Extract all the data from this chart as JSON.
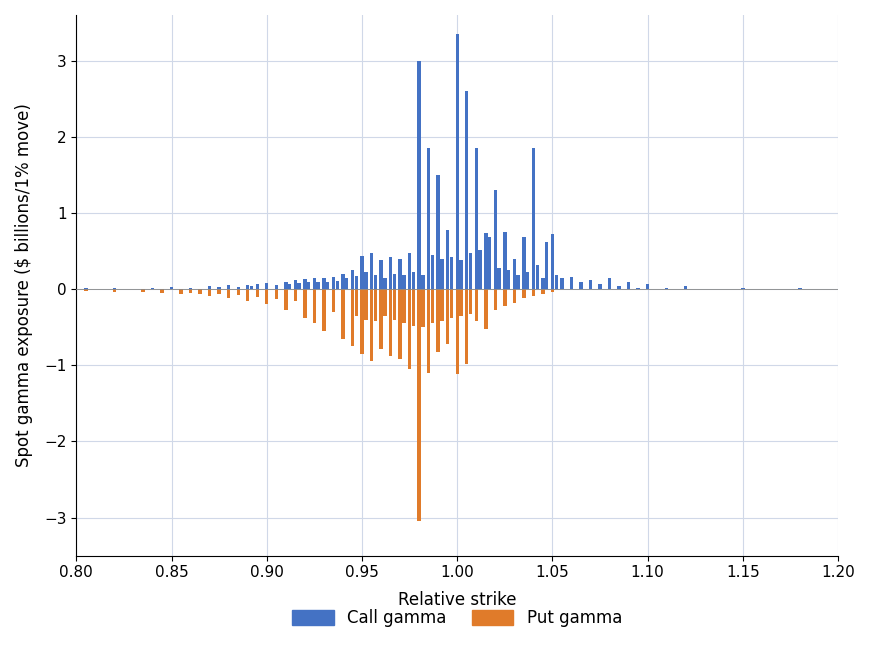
{
  "xlabel": "Relative strike",
  "ylabel": "Spot gamma exposure ($ billions/1% move)",
  "xlim": [
    0.8,
    1.2
  ],
  "ylim": [
    -3.5,
    3.6
  ],
  "yticks": [
    -3,
    -2,
    -1,
    0,
    1,
    2,
    3
  ],
  "xticks": [
    0.8,
    0.85,
    0.9,
    0.95,
    1.0,
    1.05,
    1.1,
    1.15,
    1.2
  ],
  "call_color": "#4472c4",
  "put_color": "#e07b2a",
  "background_color": "#ffffff",
  "grid_color": "#d0d8e8",
  "legend_call": "Call gamma",
  "legend_put": "Put gamma",
  "bar_width": 0.0018,
  "call_strikes": [
    0.805,
    0.82,
    0.84,
    0.85,
    0.86,
    0.87,
    0.875,
    0.88,
    0.885,
    0.89,
    0.892,
    0.895,
    0.9,
    0.905,
    0.91,
    0.912,
    0.915,
    0.917,
    0.92,
    0.922,
    0.925,
    0.927,
    0.93,
    0.932,
    0.935,
    0.937,
    0.94,
    0.942,
    0.945,
    0.947,
    0.95,
    0.952,
    0.955,
    0.957,
    0.96,
    0.962,
    0.965,
    0.967,
    0.97,
    0.972,
    0.975,
    0.977,
    0.98,
    0.982,
    0.985,
    0.987,
    0.99,
    0.992,
    0.995,
    0.997,
    1.0,
    1.002,
    1.005,
    1.007,
    1.01,
    1.012,
    1.015,
    1.017,
    1.02,
    1.022,
    1.025,
    1.027,
    1.03,
    1.032,
    1.035,
    1.037,
    1.04,
    1.042,
    1.045,
    1.047,
    1.05,
    1.052,
    1.055,
    1.06,
    1.065,
    1.07,
    1.075,
    1.08,
    1.085,
    1.09,
    1.095,
    1.1,
    1.11,
    1.12,
    1.15,
    1.18
  ],
  "call_values": [
    0.02,
    0.01,
    0.02,
    0.03,
    0.02,
    0.04,
    0.03,
    0.05,
    0.03,
    0.06,
    0.04,
    0.07,
    0.08,
    0.06,
    0.1,
    0.07,
    0.12,
    0.08,
    0.13,
    0.09,
    0.14,
    0.1,
    0.15,
    0.1,
    0.16,
    0.11,
    0.2,
    0.14,
    0.25,
    0.17,
    0.44,
    0.22,
    0.47,
    0.18,
    0.38,
    0.15,
    0.42,
    0.2,
    0.4,
    0.18,
    0.48,
    0.22,
    3.0,
    0.18,
    1.85,
    0.45,
    1.5,
    0.4,
    0.78,
    0.42,
    3.35,
    0.38,
    2.6,
    0.48,
    1.85,
    0.52,
    0.74,
    0.68,
    1.3,
    0.28,
    0.75,
    0.25,
    0.4,
    0.18,
    0.68,
    0.22,
    1.85,
    0.32,
    0.14,
    0.62,
    0.72,
    0.18,
    0.14,
    0.16,
    0.1,
    0.12,
    0.07,
    0.14,
    0.04,
    0.09,
    0.02,
    0.07,
    0.02,
    0.04,
    0.01,
    0.02
  ],
  "put_strikes": [
    0.805,
    0.82,
    0.835,
    0.845,
    0.855,
    0.86,
    0.865,
    0.87,
    0.875,
    0.88,
    0.885,
    0.89,
    0.895,
    0.9,
    0.905,
    0.91,
    0.915,
    0.92,
    0.925,
    0.93,
    0.935,
    0.94,
    0.945,
    0.947,
    0.95,
    0.952,
    0.955,
    0.957,
    0.96,
    0.962,
    0.965,
    0.967,
    0.97,
    0.972,
    0.975,
    0.977,
    0.98,
    0.982,
    0.985,
    0.987,
    0.99,
    0.992,
    0.995,
    0.997,
    1.0,
    1.002,
    1.005,
    1.007,
    1.01,
    1.015,
    1.02,
    1.025,
    1.03,
    1.035,
    1.04,
    1.045,
    1.05
  ],
  "put_values": [
    -0.03,
    -0.04,
    -0.04,
    -0.05,
    -0.06,
    -0.05,
    -0.07,
    -0.09,
    -0.07,
    -0.12,
    -0.08,
    -0.15,
    -0.1,
    -0.2,
    -0.13,
    -0.28,
    -0.16,
    -0.38,
    -0.44,
    -0.55,
    -0.3,
    -0.65,
    -0.75,
    -0.35,
    -0.85,
    -0.4,
    -0.95,
    -0.42,
    -0.78,
    -0.35,
    -0.88,
    -0.4,
    -0.92,
    -0.45,
    -1.05,
    -0.48,
    -3.05,
    -0.5,
    -1.1,
    -0.45,
    -0.82,
    -0.42,
    -0.72,
    -0.38,
    -1.12,
    -0.35,
    -0.98,
    -0.32,
    -0.42,
    -0.52,
    -0.28,
    -0.22,
    -0.18,
    -0.12,
    -0.09,
    -0.06,
    -0.04
  ]
}
